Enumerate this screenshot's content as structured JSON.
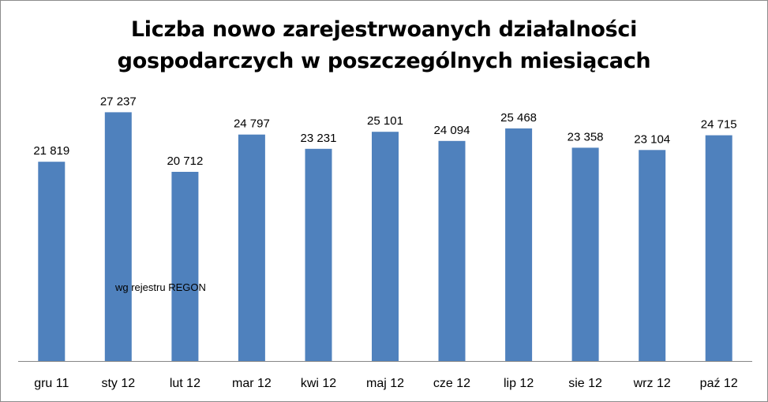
{
  "chart_data": {
    "type": "bar",
    "title_lines": [
      "Liczba nowo zarejestrwoanych działalności",
      "gospodarczych w poszczególnych miesiącach"
    ],
    "annotation": "wg rejestru REGON",
    "categories": [
      "gru 11",
      "sty 12",
      "lut 12",
      "mar 12",
      "kwi 12",
      "maj 12",
      "cze 12",
      "lip 12",
      "sie 12",
      "wrz 12",
      "paź 12"
    ],
    "values": [
      21819,
      27237,
      20712,
      24797,
      23231,
      25101,
      24094,
      25468,
      23358,
      23104,
      24715
    ],
    "value_labels": [
      "21 819",
      "27 237",
      "20 712",
      "24 797",
      "23 231",
      "25 101",
      "24 094",
      "25 468",
      "23 358",
      "23 104",
      "24 715"
    ],
    "ylim": [
      0,
      29000
    ],
    "bar_color": "#4f81bd",
    "grid": false,
    "legend": "none"
  }
}
